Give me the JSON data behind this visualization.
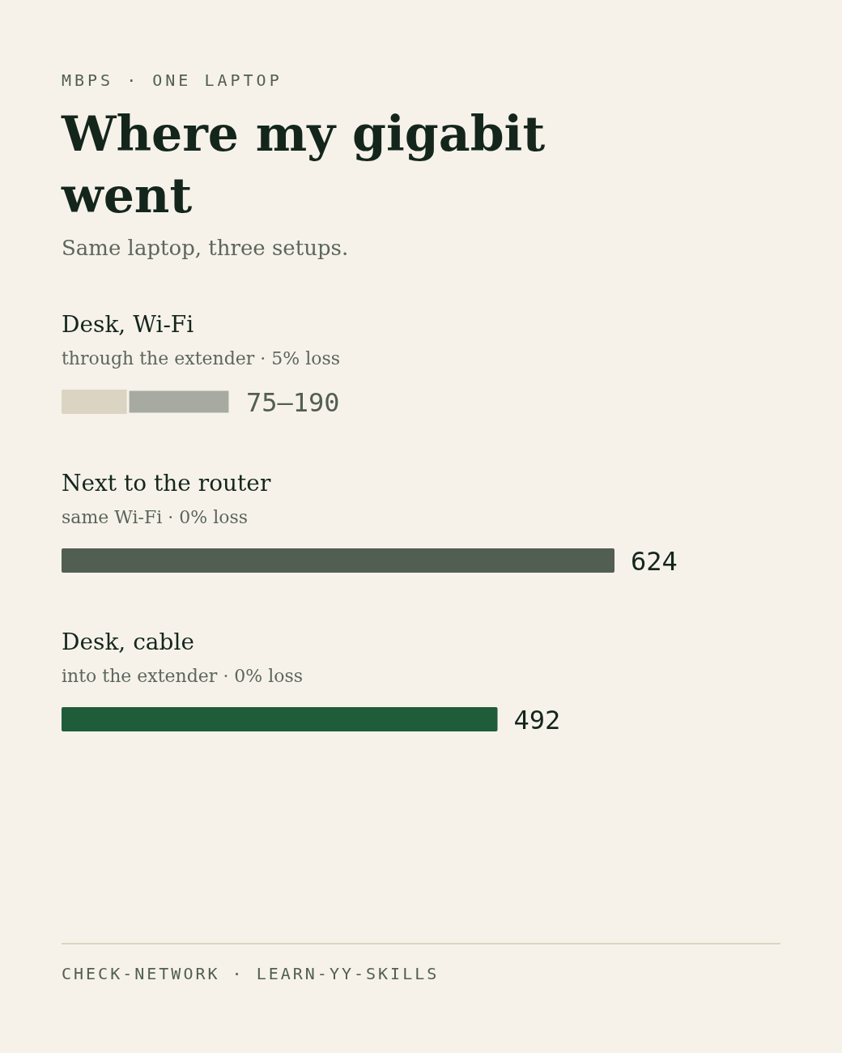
{
  "chart_data": {
    "type": "bar",
    "orientation": "horizontal",
    "stacked": true,
    "title": "Where my gigabit went",
    "subtitle": "Same laptop, three setups.",
    "categories": [
      "Desk, Wi-Fi",
      "Next to the router",
      "Desk, cable"
    ],
    "series": [
      {
        "colors": [
          "#dcd4c2",
          "#525e52",
          "#1f5c3a"
        ],
        "values": [
          75,
          624,
          492
        ],
        "value_labels": [
          null,
          "624",
          "492"
        ]
      },
      {
        "color": "#a6aaa0",
        "values": [
          115,
          null,
          null
        ],
        "value_labels": [
          "75–190",
          null,
          null
        ]
      }
    ],
    "annotations": [
      "MBPS · ONE LAPTOP",
      "through the extender · 5% loss",
      "same Wi-Fi · 0% loss",
      "into the extender · 0% loss",
      "CHECK-NETWORK · LEARN-YY-SKILLS"
    ]
  }
}
